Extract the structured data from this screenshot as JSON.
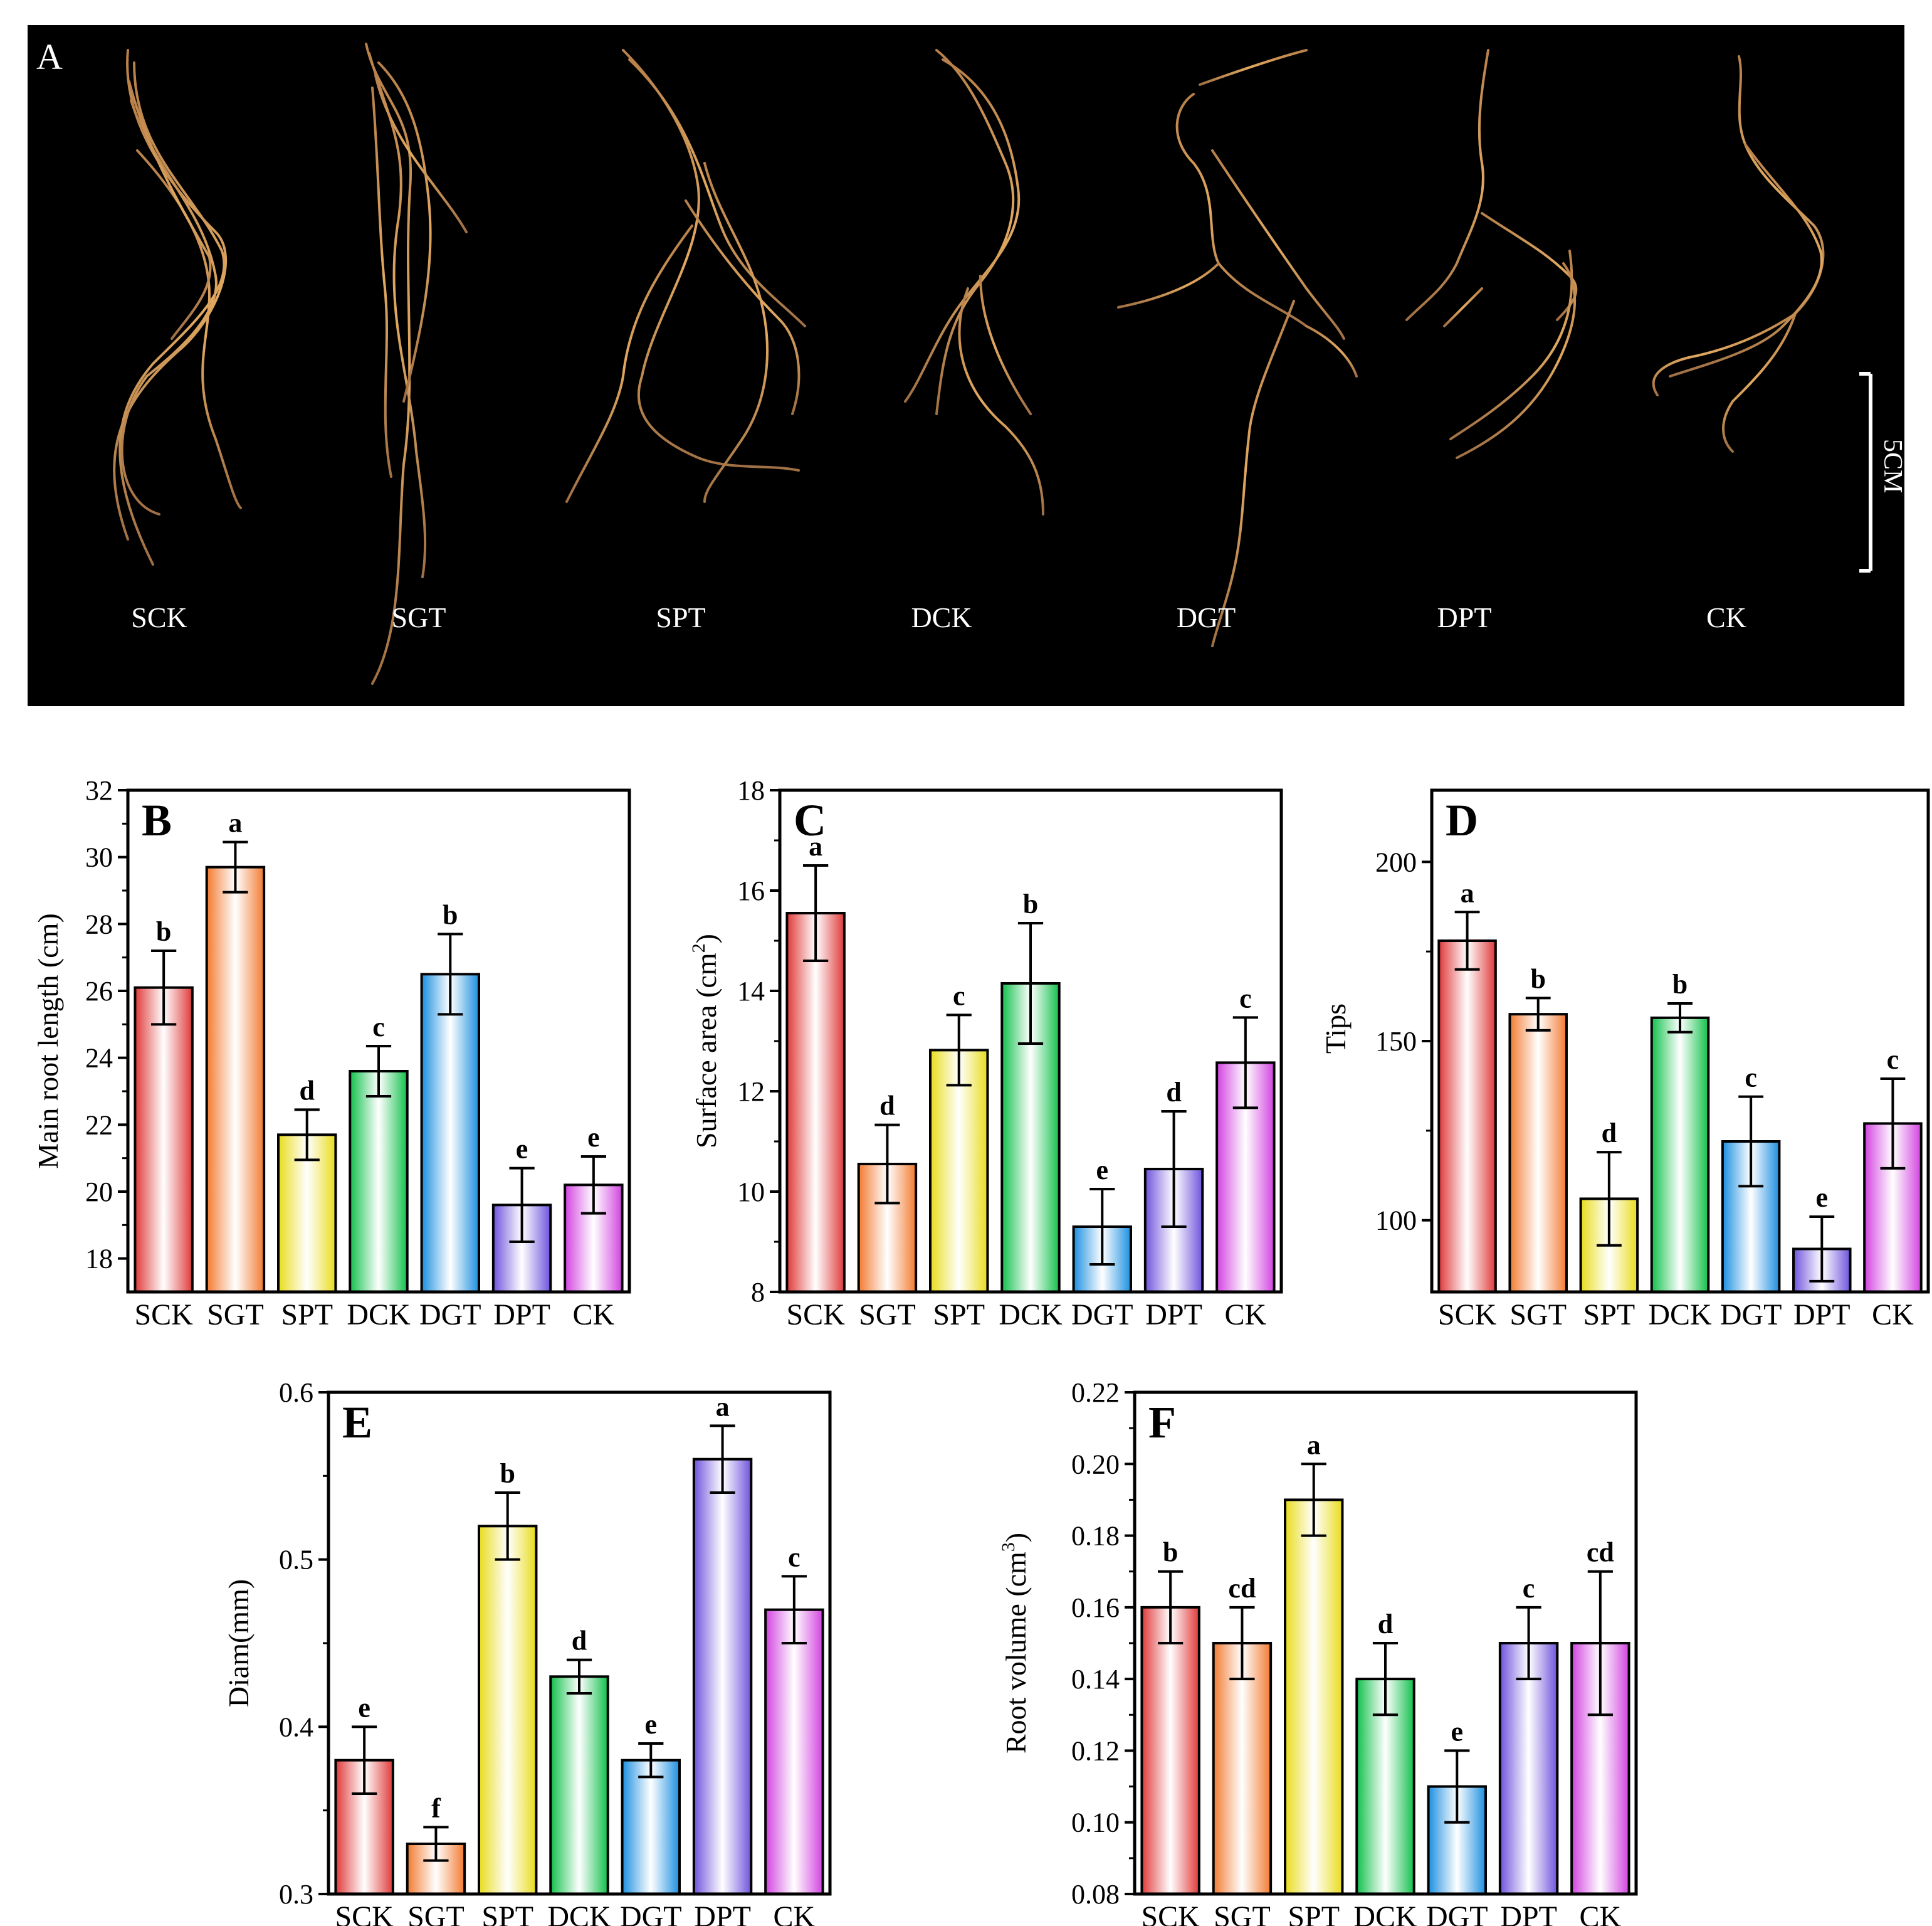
{
  "photo_panel": {
    "label": "A",
    "scale_bar": "5CM",
    "samples": [
      "SCK",
      "SGT",
      "SPT",
      "DCK",
      "DGT",
      "DPT",
      "CK"
    ]
  },
  "chart_data": [
    {
      "panel": "B",
      "type": "bar",
      "ylabel": "Main root length (cm)",
      "categories": [
        "SCK",
        "SGT",
        "SPT",
        "DCK",
        "DGT",
        "DPT",
        "CK"
      ],
      "values": [
        26.1,
        29.7,
        21.7,
        23.6,
        26.5,
        19.6,
        20.2
      ],
      "errors": [
        1.1,
        0.75,
        0.75,
        0.75,
        1.2,
        1.1,
        0.85
      ],
      "letters": [
        "b",
        "a",
        "d",
        "c",
        "b",
        "e",
        "e"
      ],
      "ylim": [
        17,
        32
      ],
      "yticks": [
        18,
        20,
        22,
        24,
        26,
        28,
        30,
        32
      ]
    },
    {
      "panel": "C",
      "type": "bar",
      "ylabel": "Surface area (cm²)",
      "ylabel_main": "Surface area (cm",
      "ylabel_sup": "2",
      "ylabel_end": ")",
      "categories": [
        "SCK",
        "SGT",
        "SPT",
        "DCK",
        "DGT",
        "DPT",
        "CK"
      ],
      "values": [
        15.55,
        10.55,
        12.82,
        14.15,
        9.3,
        10.45,
        12.57
      ],
      "errors": [
        0.95,
        0.78,
        0.7,
        1.2,
        0.75,
        1.15,
        0.9
      ],
      "letters": [
        "a",
        "d",
        "c",
        "b",
        "e",
        "d",
        "c"
      ],
      "ylim": [
        8,
        18
      ],
      "yticks": [
        8,
        10,
        12,
        14,
        16,
        18
      ]
    },
    {
      "panel": "D",
      "type": "bar",
      "ylabel": "Tips",
      "categories": [
        "SCK",
        "SGT",
        "SPT",
        "DCK",
        "DGT",
        "DPT",
        "CK"
      ],
      "values": [
        178,
        157.5,
        106,
        156.5,
        122,
        92,
        127
      ],
      "errors": [
        8,
        4.5,
        13,
        4,
        12.5,
        9,
        12.5
      ],
      "letters": [
        "a",
        "b",
        "d",
        "b",
        "c",
        "e",
        "c"
      ],
      "ylim": [
        80,
        220
      ],
      "yticks": [
        100,
        150,
        200
      ]
    },
    {
      "panel": "E",
      "type": "bar",
      "ylabel": "Diam(mm)",
      "categories": [
        "SCK",
        "SGT",
        "SPT",
        "DCK",
        "DGT",
        "DPT",
        "CK"
      ],
      "values": [
        0.38,
        0.33,
        0.52,
        0.43,
        0.38,
        0.56,
        0.47
      ],
      "errors": [
        0.02,
        0.01,
        0.02,
        0.01,
        0.01,
        0.02,
        0.02
      ],
      "letters": [
        "e",
        "f",
        "b",
        "d",
        "e",
        "a",
        "c"
      ],
      "ylim": [
        0.3,
        0.6
      ],
      "yticks": [
        0.3,
        0.4,
        0.5,
        0.6
      ]
    },
    {
      "panel": "F",
      "type": "bar",
      "ylabel": "Root volume (cm³)",
      "ylabel_main": "Root volume (cm",
      "ylabel_sup": "3",
      "ylabel_end": ")",
      "categories": [
        "SCK",
        "SGT",
        "SPT",
        "DCK",
        "DGT",
        "DPT",
        "CK"
      ],
      "values": [
        0.16,
        0.15,
        0.19,
        0.14,
        0.11,
        0.15,
        0.15
      ],
      "errors": [
        0.01,
        0.01,
        0.01,
        0.01,
        0.01,
        0.01,
        0.02
      ],
      "letters": [
        "b",
        "cd",
        "a",
        "d",
        "e",
        "c",
        "cd"
      ],
      "ylim": [
        0.08,
        0.22
      ],
      "yticks": [
        0.08,
        0.1,
        0.12,
        0.14,
        0.16,
        0.18,
        0.2,
        0.22
      ]
    }
  ],
  "colors": {
    "bar_fill": [
      "#f48e8e",
      "#f7b07a",
      "#f2ef6c",
      "#3fe078",
      "#5fb8f0",
      "#9b86ec",
      "#e589ee"
    ],
    "bar_dark": [
      "#e03838",
      "#f27a30",
      "#e8dc1a",
      "#10c04a",
      "#1a8ee0",
      "#6e52dc",
      "#d242e0"
    ],
    "axis": "#000000",
    "photo_bg": "#000000",
    "photo_text": "#ffffff",
    "root": "#c08850"
  }
}
